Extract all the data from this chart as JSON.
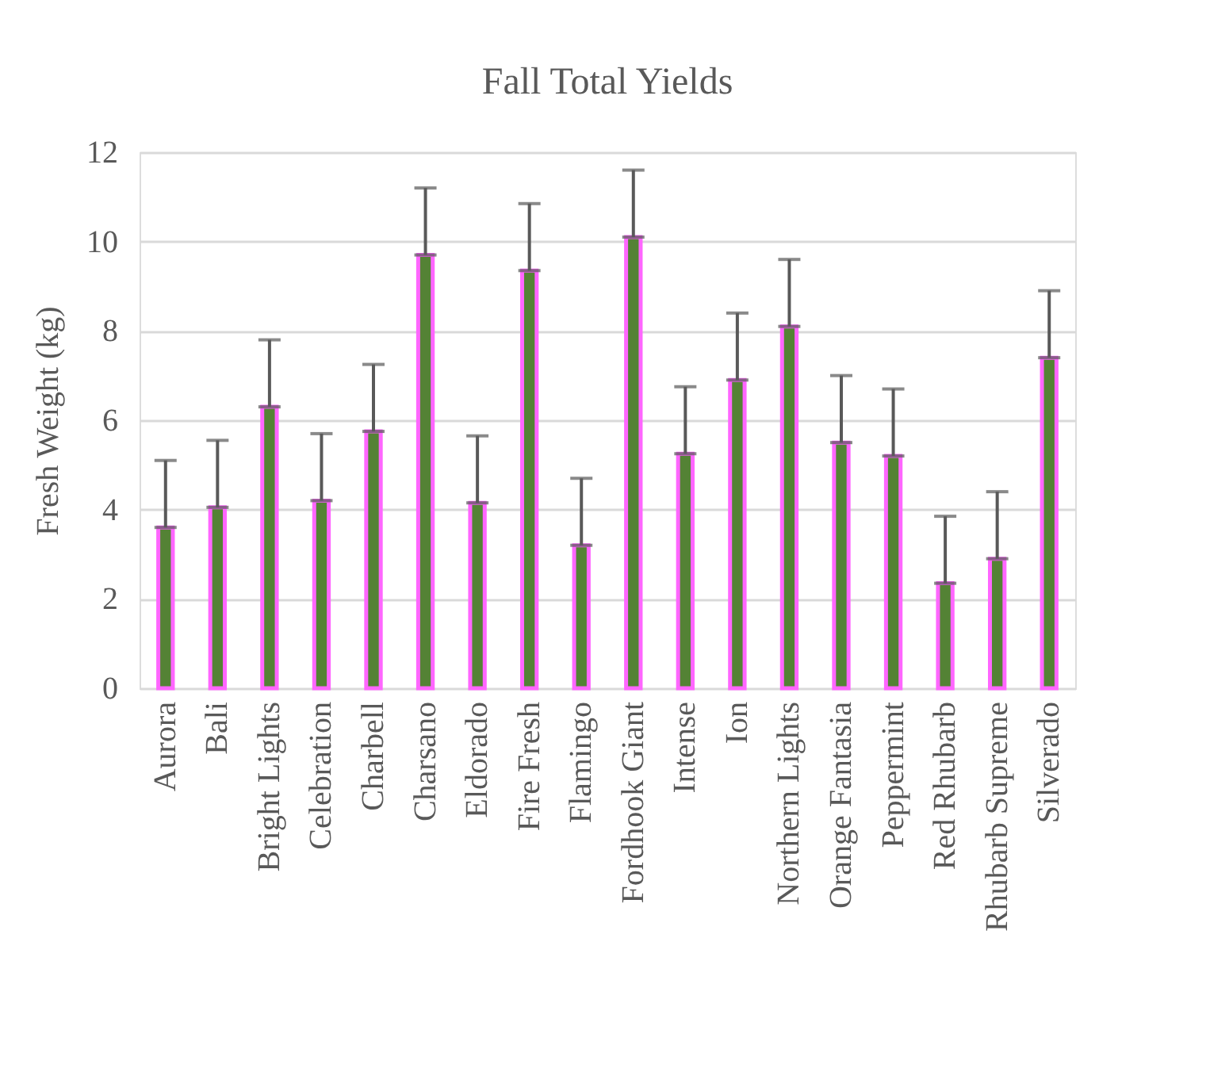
{
  "chart_data": {
    "type": "bar",
    "title": "Fall Total Yields",
    "ylabel": "Fresh Weight (kg)",
    "categories": [
      "Aurora",
      "Bali",
      "Bright Lights",
      "Celebration",
      "Charbell",
      "Charsano",
      "Eldorado",
      "Fire Fresh",
      "Flamingo",
      "Fordhook Giant",
      "Intense",
      "Ion",
      "Northern Lights",
      "Orange Fantasia",
      "Peppermint",
      "Red Rhubarb",
      "Rhubarb Supreme",
      "Silverado"
    ],
    "values": [
      3.6,
      4.05,
      6.3,
      4.2,
      5.75,
      9.7,
      4.15,
      9.35,
      3.2,
      10.1,
      5.25,
      6.9,
      8.1,
      5.5,
      5.2,
      2.35,
      2.9,
      7.4
    ],
    "errors": [
      1.5,
      1.5,
      1.5,
      1.5,
      1.5,
      1.5,
      1.5,
      1.5,
      1.5,
      1.5,
      1.5,
      1.5,
      1.5,
      1.5,
      1.5,
      1.5,
      1.5,
      1.5
    ],
    "color": "#548235",
    "ylim": [
      0,
      12
    ],
    "yticks": [
      0,
      2,
      4,
      6,
      8,
      10,
      12
    ],
    "grid": "y"
  }
}
